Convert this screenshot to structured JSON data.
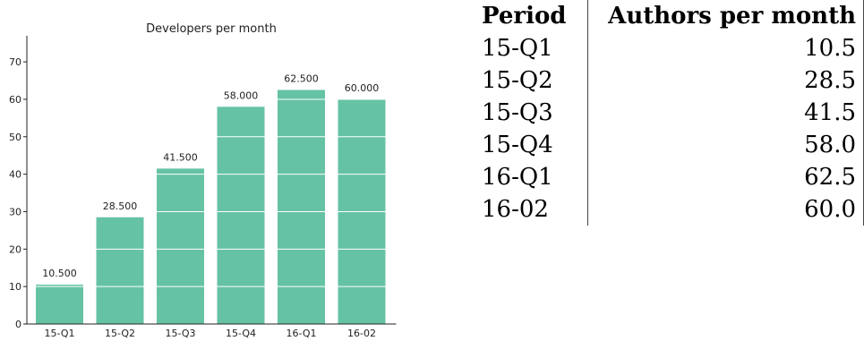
{
  "chart_data": {
    "type": "bar",
    "title": "Developers per month",
    "categories": [
      "15-Q1",
      "15-Q2",
      "15-Q3",
      "15-Q4",
      "16-Q1",
      "16-02"
    ],
    "values": [
      10.5,
      28.5,
      41.5,
      58.0,
      62.5,
      60.0
    ],
    "data_labels": [
      "10.500",
      "28.500",
      "41.500",
      "58.000",
      "62.500",
      "60.000"
    ],
    "yticks": [
      0,
      10,
      20,
      30,
      40,
      50,
      60,
      70
    ],
    "ylim": [
      0,
      76
    ],
    "xlabel": "",
    "ylabel": "",
    "bar_color": "#66c2a5",
    "grid_color": "#ffffff",
    "grid": "horizontal lines drawn over bars"
  },
  "table": {
    "headers": [
      "Period",
      "Authors per month"
    ],
    "rows": [
      {
        "period": "15-Q1",
        "value": "10.5"
      },
      {
        "period": "15-Q2",
        "value": "28.5"
      },
      {
        "period": "15-Q3",
        "value": "41.5"
      },
      {
        "period": "15-Q4",
        "value": "58.0"
      },
      {
        "period": "16-Q1",
        "value": "62.5"
      },
      {
        "period": "16-02",
        "value": "60.0"
      }
    ]
  }
}
